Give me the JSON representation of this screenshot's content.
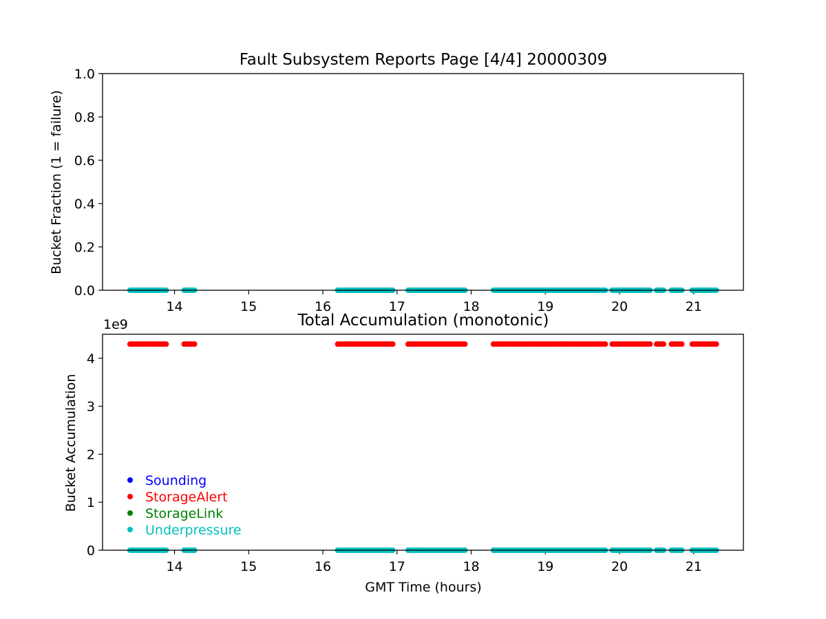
{
  "page_title": "Fault Subsystem Reports Page [4/4] 20000309",
  "chart_data": [
    {
      "type": "scatter",
      "title": "Fault Subsystem Reports Page [4/4] 20000309",
      "xlabel": "",
      "ylabel": "Bucket Fraction (1 = failure)",
      "xlim": [
        13.03,
        21.67
      ],
      "ylim": [
        0,
        1
      ],
      "x_ticks": [
        14,
        15,
        16,
        17,
        18,
        19,
        20,
        21
      ],
      "y_ticks": [
        0.0,
        0.2,
        0.4,
        0.6,
        0.8,
        1.0
      ],
      "y_tick_labels": [
        "0.0",
        "0.2",
        "0.4",
        "0.6",
        "0.8",
        "1.0"
      ],
      "grid": false,
      "series": [
        {
          "name": "Underpressure",
          "color": "#00bfbf",
          "y": 0,
          "x_ranges": [
            [
              13.4,
              13.9
            ],
            [
              14.13,
              14.27
            ],
            [
              16.2,
              16.95
            ],
            [
              17.15,
              17.93
            ],
            [
              18.3,
              19.83
            ],
            [
              19.9,
              20.43
            ],
            [
              20.5,
              20.6
            ],
            [
              20.7,
              20.85
            ],
            [
              20.98,
              21.32
            ]
          ]
        }
      ]
    },
    {
      "type": "scatter",
      "title": "Total Accumulation (monotonic)",
      "xlabel": "GMT Time (hours)",
      "ylabel": "Bucket Accumulation",
      "y_scale_label": "1e9",
      "xlim": [
        13.03,
        21.67
      ],
      "ylim": [
        0,
        4.5
      ],
      "x_ticks": [
        14,
        15,
        16,
        17,
        18,
        19,
        20,
        21
      ],
      "y_ticks": [
        0,
        1,
        2,
        3,
        4
      ],
      "y_tick_labels": [
        "0",
        "1",
        "2",
        "3",
        "4"
      ],
      "grid": false,
      "legend_position": "lower-left",
      "legend": [
        {
          "name": "Sounding",
          "color": "#0000ff"
        },
        {
          "name": "StorageAlert",
          "color": "#ff0000"
        },
        {
          "name": "StorageLink",
          "color": "#008000"
        },
        {
          "name": "Underpressure",
          "color": "#00bfbf"
        }
      ],
      "series": [
        {
          "name": "StorageAlert",
          "color": "#ff0000",
          "y": 4.295,
          "x_ranges": [
            [
              13.4,
              13.9
            ],
            [
              14.13,
              14.27
            ],
            [
              16.2,
              16.95
            ],
            [
              17.15,
              17.93
            ],
            [
              18.3,
              19.83
            ],
            [
              19.9,
              20.43
            ],
            [
              20.5,
              20.6
            ],
            [
              20.7,
              20.85
            ],
            [
              20.98,
              21.32
            ]
          ]
        },
        {
          "name": "Underpressure",
          "color": "#00bfbf",
          "y": 0,
          "x_ranges": [
            [
              13.4,
              13.9
            ],
            [
              14.13,
              14.27
            ],
            [
              16.2,
              16.95
            ],
            [
              17.15,
              17.93
            ],
            [
              18.3,
              19.83
            ],
            [
              19.9,
              20.43
            ],
            [
              20.5,
              20.6
            ],
            [
              20.7,
              20.85
            ],
            [
              20.98,
              21.32
            ]
          ]
        }
      ]
    }
  ]
}
